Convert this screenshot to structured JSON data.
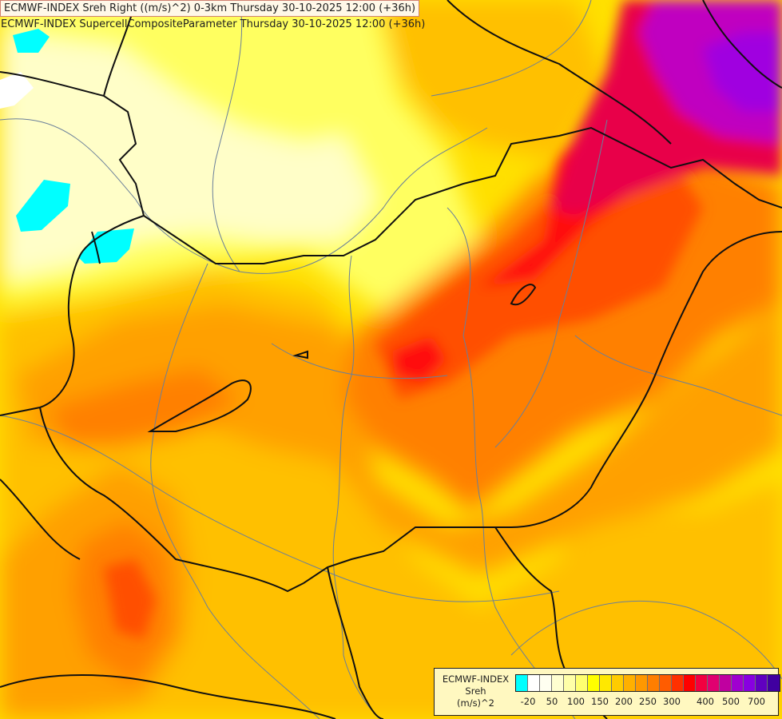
{
  "title": {
    "line1": "ECMWF-INDEX Sreh Right ((m/s)^2) 0-3km Thursday 30-10-2025 12:00 (+36h)",
    "line2": "ECMWF-INDEX SupercellCompositeParameter Thursday 30-10-2025 12:00 (+36h)"
  },
  "legend": {
    "source": "ECMWF-INDEX",
    "variable": "Sreh",
    "unit": "(m/s)^2",
    "colors": [
      "#00ffff",
      "#ffffff",
      "#fffff0",
      "#ffffd0",
      "#ffffa8",
      "#ffff70",
      "#ffff00",
      "#ffe800",
      "#ffcc00",
      "#ffb000",
      "#ff9800",
      "#ff7e00",
      "#ff5c00",
      "#ff3000",
      "#ff0000",
      "#f20040",
      "#e00070",
      "#c000a0",
      "#a000d0",
      "#8800e0",
      "#6000c0",
      "#4000a0"
    ],
    "ticks": [
      "-20",
      "50",
      "100",
      "150",
      "200",
      "250",
      "300",
      "400",
      "500",
      "700"
    ]
  },
  "colors": {
    "cyan": "#00ffff",
    "lemon": "#fffec8",
    "light_yellow": "#ffff60",
    "yellow": "#ffe000",
    "amber": "#ffc000",
    "orange": "#ffa000",
    "dark_orange": "#ff8000",
    "red_orange": "#ff5000",
    "red": "#ff0a0a",
    "crimson": "#e8004a",
    "magenta": "#c000c0",
    "purple": "#a000e0",
    "border_line": "#101010",
    "river_line": "#6a7f9a"
  }
}
